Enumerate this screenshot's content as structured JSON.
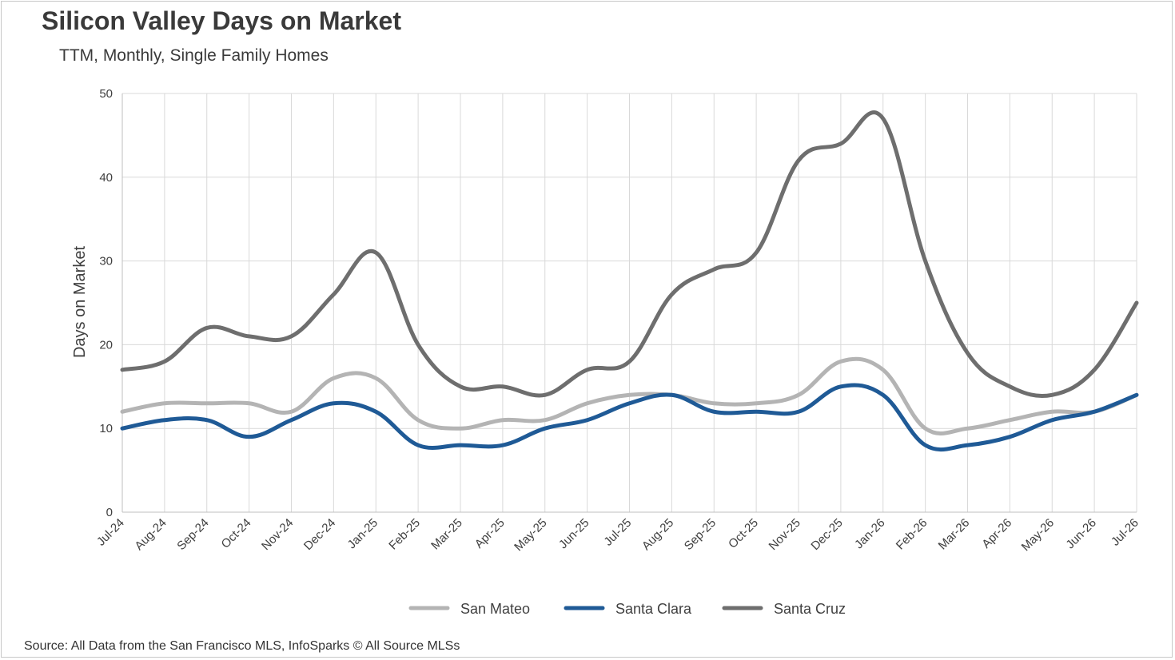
{
  "header": {
    "title": "Silicon Valley Days on Market",
    "subtitle": "TTM, Monthly, Single Family Homes"
  },
  "footer": {
    "source": "Source: All Data from the San Francisco MLS, InfoSparks © All Source MLSs"
  },
  "chart_data": {
    "type": "line",
    "title": "Silicon Valley Days on Market",
    "subtitle": "TTM, Monthly, Single Family Homes",
    "xlabel": "",
    "ylabel": "Days on Market",
    "ylim": [
      0,
      50
    ],
    "yticks": [
      0,
      10,
      20,
      30,
      40,
      50
    ],
    "grid": true,
    "legend_position": "bottom",
    "categories": [
      "Jul-24",
      "Aug-24",
      "Sep-24",
      "Oct-24",
      "Nov-24",
      "Dec-24",
      "Jan-25",
      "Feb-25",
      "Mar-25",
      "Apr-25",
      "May-25",
      "Jun-25",
      "Jul-25",
      "Aug-25",
      "Sep-25",
      "Oct-25",
      "Nov-25",
      "Dec-25",
      "Jan-26",
      "Feb-26",
      "Mar-26",
      "Apr-26",
      "May-26",
      "Jun-26",
      "Jul-26"
    ],
    "series": [
      {
        "name": "San Mateo",
        "color": "#b4b4b4",
        "values": [
          12,
          13,
          13,
          13,
          12,
          16,
          16,
          11,
          10,
          11,
          11,
          13,
          14,
          14,
          13,
          13,
          14,
          18,
          17,
          10,
          10,
          11,
          12,
          12,
          14
        ]
      },
      {
        "name": "Santa Clara",
        "color": "#1f5a96",
        "values": [
          10,
          11,
          11,
          9,
          11,
          13,
          12,
          8,
          8,
          8,
          10,
          11,
          13,
          14,
          12,
          12,
          12,
          15,
          14,
          8,
          8,
          9,
          11,
          12,
          14
        ]
      },
      {
        "name": "Santa Cruz",
        "color": "#6e6e6e",
        "values": [
          17,
          18,
          22,
          21,
          21,
          26,
          31,
          20,
          15,
          15,
          14,
          17,
          18,
          26,
          29,
          31,
          42,
          44,
          47,
          30,
          19,
          15,
          14,
          17,
          25
        ]
      }
    ]
  }
}
